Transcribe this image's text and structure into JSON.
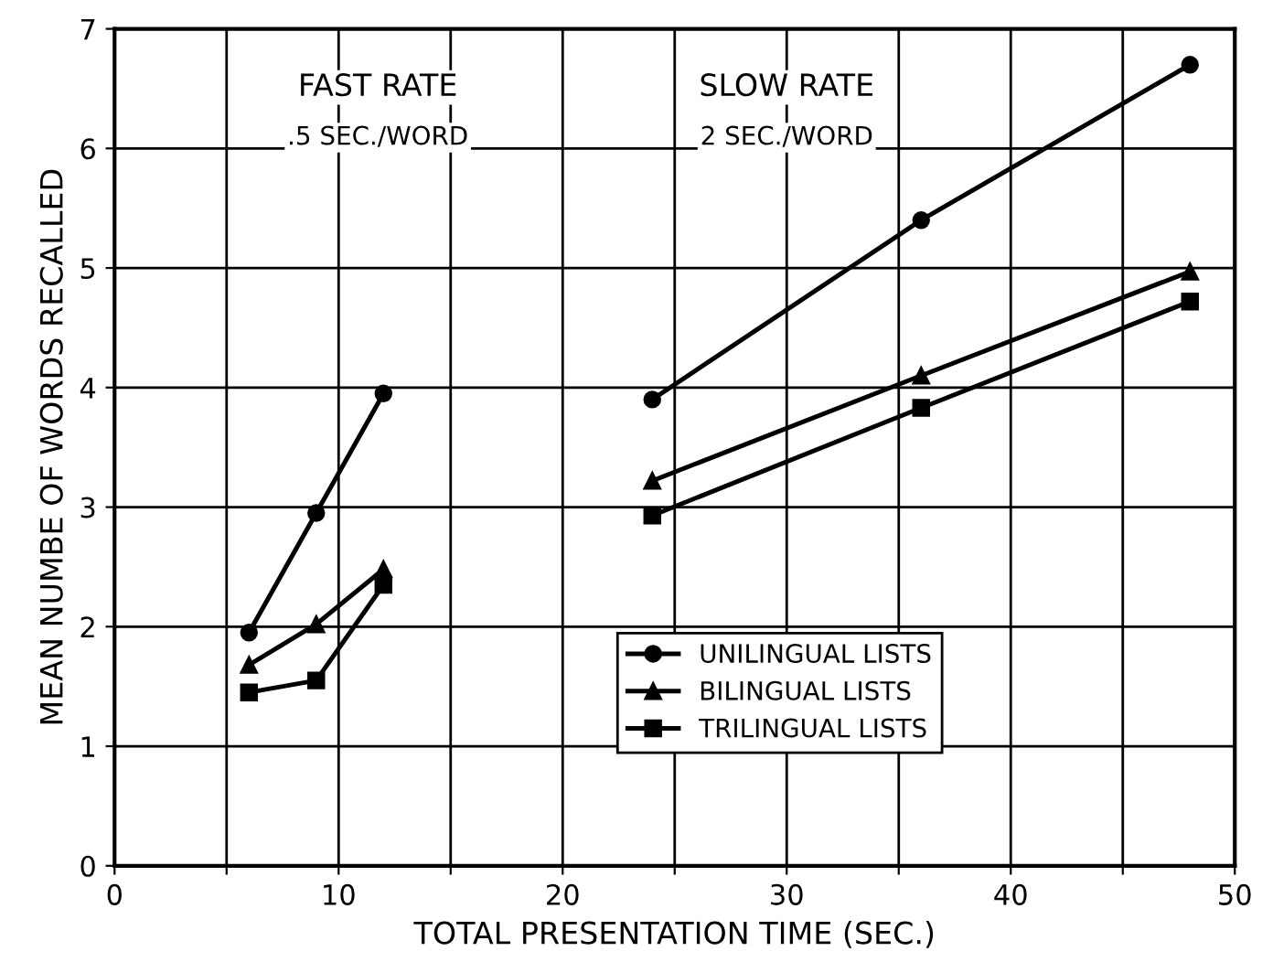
{
  "chart_data": {
    "type": "line",
    "xlabel": "TOTAL PRESENTATION TIME (SEC.)",
    "ylabel": "MEAN NUMBE OF WORDS RECALLED",
    "xlim": [
      0,
      50
    ],
    "ylim": [
      0,
      7
    ],
    "xticks": [
      0,
      {
        "value": 5,
        "label": null
      },
      10,
      {
        "value": 15,
        "label": null
      },
      20,
      {
        "value": 25,
        "label": null
      },
      30,
      {
        "value": 35,
        "label": null
      },
      40,
      {
        "value": 45,
        "label": null
      },
      50
    ],
    "yticks": [
      0,
      1,
      2,
      3,
      4,
      5,
      6,
      7
    ],
    "grid": true,
    "legend": "bottom right",
    "annotations": [
      "FAST RATE",
      ".5 SEC./WORD",
      "SLOW RATE",
      "2 SEC./WORD"
    ],
    "series": [
      {
        "name": "UNILINGUAL LISTS",
        "color": "#000000",
        "marker": "circle",
        "x": [
          6,
          9,
          12
        ],
        "values": [
          1.95,
          2.95,
          3.95
        ]
      },
      {
        "name": "BILINGUAL LISTS",
        "color": "#000000",
        "marker": "triangle",
        "x": [
          6,
          9,
          12
        ],
        "values": [
          1.68,
          2.02,
          2.48
        ]
      },
      {
        "name": "TRILINGUAL LISTS",
        "color": "#000000",
        "marker": "square",
        "x": [
          6,
          9,
          12
        ],
        "values": [
          1.45,
          1.55,
          2.35
        ]
      },
      {
        "color": "#000000",
        "marker": "circle",
        "x": [
          24,
          36,
          48
        ],
        "values": [
          3.9,
          5.4,
          6.7
        ]
      },
      {
        "color": "#000000",
        "marker": "triangle",
        "x": [
          24,
          36,
          48
        ],
        "values": [
          3.22,
          4.1,
          4.97
        ]
      },
      {
        "color": "#000000",
        "marker": "square",
        "x": [
          24,
          36,
          48
        ],
        "values": [
          2.93,
          3.83,
          4.72
        ]
      }
    ]
  }
}
